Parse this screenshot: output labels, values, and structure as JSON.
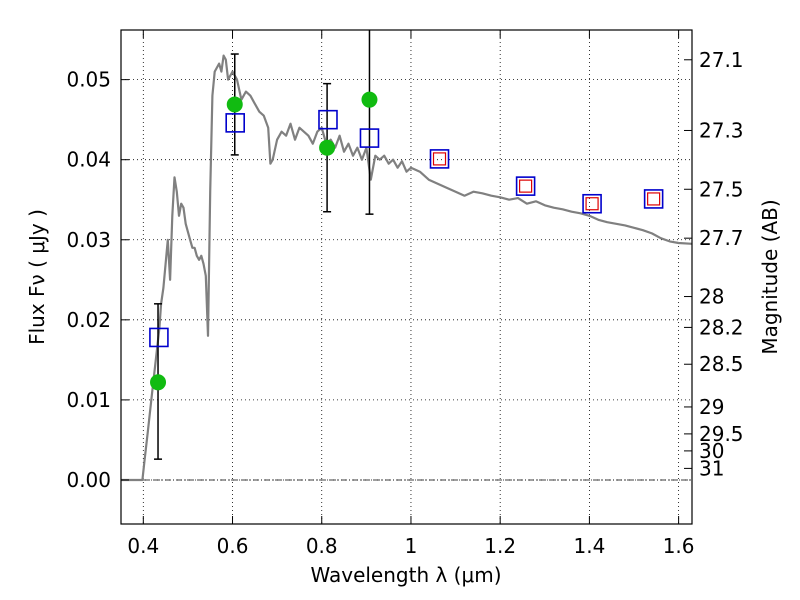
{
  "chart_data": {
    "type": "scatter",
    "xlabel": "Wavelength  λ (μm)",
    "ylabel": "Flux  Fν  ( μJy )",
    "ylabel_right": "Magnitude (AB)",
    "xlim": [
      0.35,
      1.63
    ],
    "ylim": [
      -0.0055,
      0.0562
    ],
    "grid": true,
    "x_ticks": [
      0.4,
      0.6,
      0.8,
      1.0,
      1.2,
      1.4,
      1.6
    ],
    "x_tick_labels": [
      "0.4",
      "0.6",
      "0.8",
      "1",
      "1.2",
      "1.4",
      "1.6"
    ],
    "y_ticks": [
      0.0,
      0.01,
      0.02,
      0.03,
      0.04,
      0.05
    ],
    "y_tick_labels": [
      "0.00",
      "0.01",
      "0.02",
      "0.03",
      "0.04",
      "0.05"
    ],
    "right_axis": {
      "scale": "AB magnitude",
      "tick_labels": [
        "27.1",
        "27.3",
        "27.5",
        "27.7",
        "28",
        "28.2",
        "28.5",
        "29",
        "29.5",
        "30",
        "31"
      ]
    },
    "series": [
      {
        "kind": "model_spectrum",
        "color": "#808080",
        "x": [
          0.35,
          0.398,
          0.403,
          0.41,
          0.42,
          0.43,
          0.436,
          0.44,
          0.445,
          0.45,
          0.455,
          0.46,
          0.465,
          0.47,
          0.475,
          0.48,
          0.485,
          0.49,
          0.495,
          0.5,
          0.505,
          0.51,
          0.515,
          0.52,
          0.525,
          0.53,
          0.535,
          0.54,
          0.545,
          0.55,
          0.555,
          0.56,
          0.565,
          0.57,
          0.575,
          0.58,
          0.585,
          0.59,
          0.6,
          0.61,
          0.62,
          0.63,
          0.64,
          0.65,
          0.66,
          0.67,
          0.68,
          0.685,
          0.69,
          0.7,
          0.71,
          0.72,
          0.73,
          0.74,
          0.75,
          0.76,
          0.77,
          0.78,
          0.79,
          0.8,
          0.81,
          0.82,
          0.83,
          0.84,
          0.85,
          0.86,
          0.87,
          0.88,
          0.89,
          0.9,
          0.91,
          0.92,
          0.93,
          0.94,
          0.95,
          0.96,
          0.97,
          0.98,
          0.99,
          1.0,
          1.02,
          1.04,
          1.06,
          1.08,
          1.1,
          1.12,
          1.14,
          1.16,
          1.18,
          1.2,
          1.22,
          1.24,
          1.26,
          1.28,
          1.3,
          1.32,
          1.34,
          1.36,
          1.38,
          1.4,
          1.42,
          1.44,
          1.46,
          1.48,
          1.5,
          1.52,
          1.54,
          1.56,
          1.58,
          1.6,
          1.63
        ],
        "y": [
          0.0,
          0.0,
          0.0025,
          0.006,
          0.011,
          0.016,
          0.019,
          0.022,
          0.024,
          0.027,
          0.03,
          0.025,
          0.033,
          0.0378,
          0.036,
          0.033,
          0.0345,
          0.034,
          0.032,
          0.031,
          0.03,
          0.029,
          0.029,
          0.028,
          0.0275,
          0.028,
          0.027,
          0.0255,
          0.018,
          0.036,
          0.048,
          0.051,
          0.0515,
          0.052,
          0.051,
          0.053,
          0.0525,
          0.05,
          0.051,
          0.05,
          0.0475,
          0.0485,
          0.048,
          0.047,
          0.046,
          0.0455,
          0.044,
          0.0395,
          0.04,
          0.0425,
          0.0435,
          0.043,
          0.0445,
          0.0425,
          0.044,
          0.0435,
          0.043,
          0.042,
          0.0435,
          0.044,
          0.042,
          0.0425,
          0.0415,
          0.043,
          0.041,
          0.042,
          0.0405,
          0.0415,
          0.04,
          0.0415,
          0.0375,
          0.0405,
          0.04,
          0.0405,
          0.0395,
          0.04,
          0.039,
          0.0398,
          0.0385,
          0.039,
          0.0385,
          0.0375,
          0.037,
          0.0365,
          0.036,
          0.0355,
          0.036,
          0.0358,
          0.0355,
          0.0353,
          0.035,
          0.0352,
          0.0345,
          0.0348,
          0.0343,
          0.034,
          0.0338,
          0.0335,
          0.0333,
          0.033,
          0.0325,
          0.0322,
          0.032,
          0.0318,
          0.0315,
          0.0312,
          0.0308,
          0.0302,
          0.0298,
          0.0296,
          0.0295
        ]
      },
      {
        "kind": "observed_flux_with_errors",
        "marker": "circle",
        "color": "#11bb11",
        "x": [
          0.433,
          0.605,
          0.812,
          0.907
        ],
        "y": [
          0.0122,
          0.0469,
          0.0415,
          0.0475
        ],
        "yerr_low": [
          0.0096,
          0.0063,
          0.008,
          0.0143
        ],
        "yerr_high": [
          0.0098,
          0.0063,
          0.008,
          0.0145
        ]
      },
      {
        "kind": "model_band_flux",
        "marker": "open-square",
        "color": "#0000cc",
        "x": [
          0.435,
          0.606,
          0.814,
          0.907,
          1.064,
          1.257,
          1.406,
          1.544
        ],
        "y": [
          0.0178,
          0.0446,
          0.045,
          0.0427,
          0.0401,
          0.0367,
          0.0345,
          0.0351
        ]
      },
      {
        "kind": "model_band_flux_small",
        "marker": "open-square",
        "color": "#dd0000",
        "x": [
          1.064,
          1.257,
          1.406,
          1.544
        ],
        "y": [
          0.0401,
          0.0367,
          0.0345,
          0.0351
        ]
      }
    ]
  }
}
